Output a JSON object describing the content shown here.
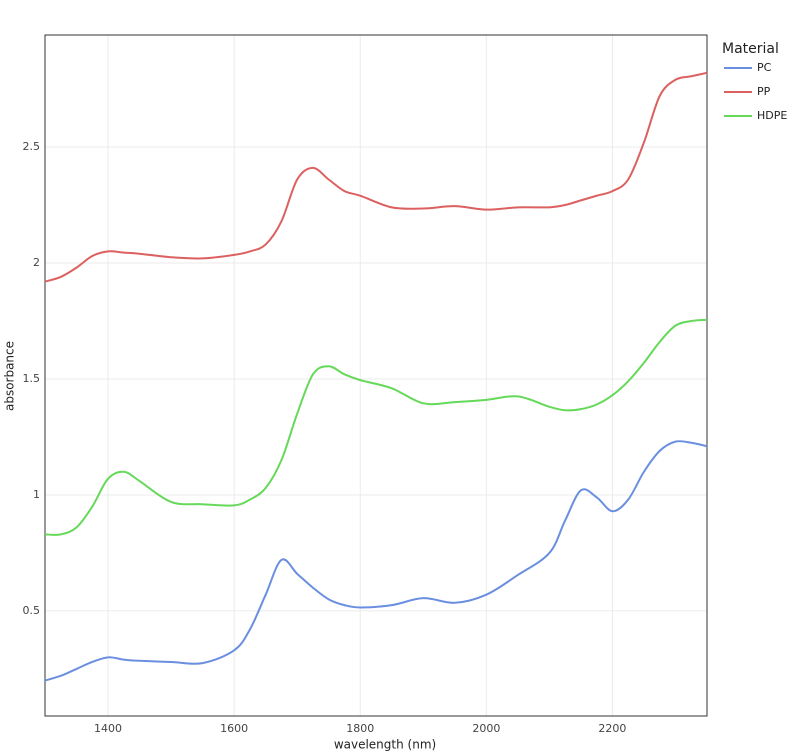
{
  "chart_data": {
    "type": "line",
    "x_label": "wavelength (nm)",
    "y_label": "absorbance",
    "legend_title": "Material",
    "legend_position": "right",
    "grid": true,
    "x": [
      1300,
      1325,
      1350,
      1375,
      1400,
      1425,
      1450,
      1500,
      1550,
      1600,
      1625,
      1650,
      1675,
      1700,
      1725,
      1750,
      1775,
      1800,
      1850,
      1900,
      1950,
      2000,
      2050,
      2100,
      2125,
      2150,
      2175,
      2200,
      2225,
      2250,
      2275,
      2300,
      2325,
      2350
    ],
    "series": [
      {
        "name": "PC",
        "color": "#6a8fe0",
        "values": [
          0.2,
          0.22,
          0.25,
          0.28,
          0.3,
          0.29,
          0.285,
          0.28,
          0.275,
          0.33,
          0.42,
          0.57,
          0.72,
          0.66,
          0.6,
          0.55,
          0.525,
          0.515,
          0.525,
          0.555,
          0.535,
          0.57,
          0.655,
          0.75,
          0.89,
          1.02,
          0.99,
          0.93,
          0.98,
          1.1,
          1.19,
          1.23,
          1.225,
          1.21
        ]
      },
      {
        "name": "PP",
        "color": "#dc6060",
        "values": [
          1.92,
          1.94,
          1.98,
          2.03,
          2.05,
          2.045,
          2.04,
          2.025,
          2.02,
          2.035,
          2.05,
          2.08,
          2.18,
          2.36,
          2.41,
          2.36,
          2.31,
          2.29,
          2.24,
          2.235,
          2.245,
          2.23,
          2.24,
          2.24,
          2.25,
          2.27,
          2.29,
          2.31,
          2.36,
          2.52,
          2.72,
          2.79,
          2.805,
          2.82
        ]
      },
      {
        "name": "HDPE",
        "color": "#66d85a",
        "values": [
          0.83,
          0.83,
          0.86,
          0.95,
          1.07,
          1.1,
          1.06,
          0.97,
          0.96,
          0.955,
          0.98,
          1.03,
          1.15,
          1.35,
          1.52,
          1.555,
          1.52,
          1.495,
          1.46,
          1.395,
          1.4,
          1.41,
          1.425,
          1.38,
          1.365,
          1.37,
          1.39,
          1.43,
          1.49,
          1.57,
          1.66,
          1.73,
          1.75,
          1.755
        ]
      }
    ],
    "xlim": [
      1300,
      2350
    ],
    "xticks": [
      1400,
      1600,
      1800,
      2000,
      2200
    ],
    "ylim": [
      0.047,
      2.983
    ],
    "yticks": [
      0.5,
      1,
      1.5,
      2,
      2.5
    ]
  }
}
